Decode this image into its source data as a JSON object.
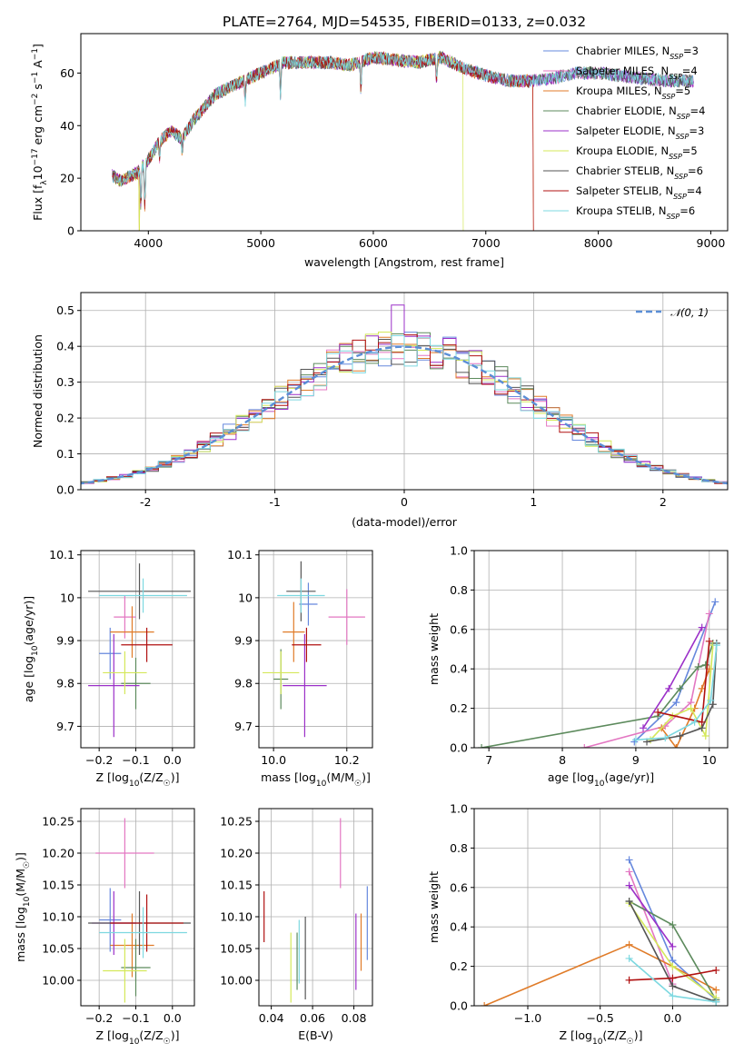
{
  "figure": {
    "title": "PLATE=2764, MJD=54535, FIBERID=0133, z=0.032"
  },
  "colors": [
    "#6688dd",
    "#e377c2",
    "#e07b28",
    "#5c8a5c",
    "#9b30c8",
    "#d4e85a",
    "#555555",
    "#b01010",
    "#7dd8e0"
  ],
  "chart_data": [
    {
      "id": "spectrum",
      "type": "line",
      "xlabel": "wavelength [Angstrom, rest frame]",
      "ylabel": "Flux [f_λ 10^-17 erg cm^-2 s^-1 A^-1]",
      "xlim": [
        3400,
        9150
      ],
      "ylim": [
        0,
        75
      ],
      "xticks": [
        4000,
        5000,
        6000,
        7000,
        8000,
        9000
      ],
      "yticks": [
        0,
        20,
        40,
        60
      ],
      "grid": false,
      "legend_position": "upper-right",
      "continuum": {
        "x": [
          3680,
          3750,
          3900,
          4000,
          4100,
          4200,
          4300,
          4400,
          4500,
          4600,
          4800,
          5000,
          5200,
          5400,
          5600,
          5800,
          6000,
          6200,
          6400,
          6600,
          6800,
          7000,
          7200,
          7400,
          7600,
          7800,
          8000,
          8200,
          8400,
          8600,
          8850
        ],
        "y": [
          21,
          19,
          22,
          27,
          34,
          38,
          35,
          42,
          47,
          52,
          56,
          60,
          64,
          64,
          64,
          63,
          66,
          65,
          64,
          66,
          62,
          59,
          57,
          57,
          58,
          60,
          60,
          59,
          58,
          57,
          57
        ]
      },
      "series": [
        {
          "name": "Chabrier MILES, N_SSP=3",
          "label_main": "Chabrier MILES, N",
          "label_sub": "SSP",
          "label_tail": "=3",
          "cutoff": null
        },
        {
          "name": "Salpeter MILES, N_SSP=4",
          "label_main": "Salpeter MILES, N",
          "label_sub": "SSP",
          "label_tail": "=4",
          "cutoff": null
        },
        {
          "name": "Kroupa MILES, N_SSP=5",
          "label_main": "Kroupa MILES, N",
          "label_sub": "SSP",
          "label_tail": "=5",
          "cutoff": 7420
        },
        {
          "name": "Chabrier ELODIE, N_SSP=4",
          "label_main": "Chabrier ELODIE, N",
          "label_sub": "SSP",
          "label_tail": "=4",
          "cutoff": null
        },
        {
          "name": "Salpeter ELODIE, N_SSP=3",
          "label_main": "Salpeter ELODIE, N",
          "label_sub": "SSP",
          "label_tail": "=3",
          "cutoff": null
        },
        {
          "name": "Kroupa ELODIE, N_SSP=5",
          "label_main": "Kroupa ELODIE, N",
          "label_sub": "SSP",
          "label_tail": "=5",
          "cutoff": 6800
        },
        {
          "name": "Chabrier STELIB, N_SSP=6",
          "label_main": "Chabrier STELIB, N",
          "label_sub": "SSP",
          "label_tail": "=6",
          "cutoff": null
        },
        {
          "name": "Salpeter STELIB, N_SSP=4",
          "label_main": "Salpeter STELIB, N",
          "label_sub": "SSP",
          "label_tail": "=4",
          "cutoff": 7420
        },
        {
          "name": "Kroupa STELIB, N_SSP=6",
          "label_main": "Kroupa STELIB, N",
          "label_sub": "SSP",
          "label_tail": "=6",
          "cutoff": null
        }
      ]
    },
    {
      "id": "residuals",
      "type": "line",
      "xlabel": "(data-model)/error",
      "ylabel": "Normed distribution",
      "xlim": [
        -2.5,
        2.5
      ],
      "ylim": [
        0,
        0.55
      ],
      "xticks": [
        -2,
        -1,
        0,
        1,
        2
      ],
      "yticks": [
        0.0,
        0.1,
        0.2,
        0.3,
        0.4,
        0.5
      ],
      "ytick_labels": [
        "0.0",
        "0.1",
        "0.2",
        "0.3",
        "0.4",
        "0.5"
      ],
      "grid": true,
      "bin_width": 0.1,
      "legend": {
        "label": "𝒩(0, 1)",
        "position": "upper-right"
      }
    },
    {
      "id": "age-vs-Z",
      "type": "scatter",
      "xlabel": "Z [log10(Z/Z☉)]",
      "ylabel": "age [log10(age/yr)]",
      "xlim": [
        -0.25,
        0.06
      ],
      "ylim": [
        9.65,
        10.11
      ],
      "xticks": [
        -0.2,
        -0.1,
        0.0
      ],
      "xtick_labels": [
        "−0.2",
        "−0.1",
        "0.0"
      ],
      "yticks": [
        9.7,
        9.8,
        9.9,
        10.0,
        10.1
      ],
      "grid": true,
      "points": [
        {
          "x": -0.17,
          "xerr": 0.03,
          "y": 9.87,
          "yerr": 0.06
        },
        {
          "x": -0.13,
          "xerr": 0.03,
          "y": 9.955,
          "yerr": 0.05
        },
        {
          "x": -0.11,
          "xerr": 0.06,
          "y": 9.92,
          "yerr": 0.06
        },
        {
          "x": -0.1,
          "xerr": 0.04,
          "y": 9.8,
          "yerr": 0.06
        },
        {
          "x": -0.16,
          "xerr": 0.07,
          "y": 9.795,
          "yerr": 0.12
        },
        {
          "x": -0.13,
          "xerr": 0.06,
          "y": 9.825,
          "yerr": 0.05
        },
        {
          "x": -0.09,
          "xerr": 0.14,
          "y": 10.015,
          "yerr": 0.065
        },
        {
          "x": -0.07,
          "xerr": 0.07,
          "y": 9.89,
          "yerr": 0.04
        },
        {
          "x": -0.08,
          "xerr": 0.12,
          "y": 10.005,
          "yerr": 0.04
        }
      ]
    },
    {
      "id": "age-vs-mass",
      "type": "scatter",
      "xlabel": "mass [log10(M/M☉)]",
      "ylabel": "",
      "xlim": [
        9.96,
        10.27
      ],
      "ylim": [
        9.65,
        10.11
      ],
      "xticks": [
        10.0,
        10.2
      ],
      "xtick_labels": [
        "10.0",
        "10.2"
      ],
      "yticks": [
        9.7,
        9.8,
        9.9,
        10.0,
        10.1
      ],
      "grid": true,
      "points": [
        {
          "x": 10.095,
          "xerr": 0.025,
          "y": 9.985,
          "yerr": 0.05
        },
        {
          "x": 10.2,
          "xerr": 0.05,
          "y": 9.955,
          "yerr": 0.065
        },
        {
          "x": 10.055,
          "xerr": 0.03,
          "y": 9.92,
          "yerr": 0.07
        },
        {
          "x": 10.02,
          "xerr": 0.02,
          "y": 9.81,
          "yerr": 0.07
        },
        {
          "x": 10.085,
          "xerr": 0.06,
          "y": 9.795,
          "yerr": 0.12
        },
        {
          "x": 10.02,
          "xerr": 0.05,
          "y": 9.825,
          "yerr": 0.05
        },
        {
          "x": 10.075,
          "xerr": 0.04,
          "y": 10.015,
          "yerr": 0.07
        },
        {
          "x": 10.09,
          "xerr": 0.04,
          "y": 9.89,
          "yerr": 0.04
        },
        {
          "x": 10.075,
          "xerr": 0.065,
          "y": 10.005,
          "yerr": 0.04
        }
      ]
    },
    {
      "id": "mass-weight-vs-age",
      "type": "line",
      "xlabel": "age [log10(age/yr)]",
      "ylabel": "mass weight",
      "xlim": [
        6.8,
        10.25
      ],
      "ylim": [
        0,
        1
      ],
      "xticks": [
        7,
        8,
        9,
        10
      ],
      "yticks": [
        0.0,
        0.2,
        0.4,
        0.6,
        0.8,
        1.0
      ],
      "ytick_labels": [
        "0.0",
        "0.2",
        "0.4",
        "0.6",
        "0.8",
        "1.0"
      ],
      "grid": true,
      "series": [
        {
          "x": [
            8.98,
            9.55,
            10.08
          ],
          "y": [
            0.03,
            0.23,
            0.74
          ]
        },
        {
          "x": [
            8.3,
            9.4,
            9.75,
            10.0
          ],
          "y": [
            0.0,
            0.11,
            0.23,
            0.68
          ]
        },
        {
          "x": [
            9.35,
            9.55,
            9.8,
            9.9,
            10.0
          ],
          "y": [
            0.1,
            0.0,
            0.2,
            0.3,
            0.4
          ]
        },
        {
          "x": [
            6.9,
            9.3,
            9.6,
            9.85,
            9.95,
            10.05
          ],
          "y": [
            0.0,
            0.16,
            0.3,
            0.41,
            0.42,
            0.53
          ]
        },
        {
          "x": [
            9.1,
            9.45,
            9.9
          ],
          "y": [
            0.1,
            0.3,
            0.61
          ]
        },
        {
          "x": [
            9.2,
            9.5,
            9.75,
            9.95,
            10.05
          ],
          "y": [
            0.04,
            0.16,
            0.2,
            0.06,
            0.52
          ]
        },
        {
          "x": [
            9.15,
            9.6,
            9.9,
            10.05,
            10.1
          ],
          "y": [
            0.03,
            0.06,
            0.1,
            0.22,
            0.53
          ]
        },
        {
          "x": [
            9.3,
            9.9,
            10.0
          ],
          "y": [
            0.18,
            0.13,
            0.54
          ]
        },
        {
          "x": [
            9.0,
            9.4,
            9.8,
            10.02,
            10.1
          ],
          "y": [
            0.04,
            0.05,
            0.13,
            0.24,
            0.52
          ]
        }
      ]
    },
    {
      "id": "mass-vs-Z",
      "type": "scatter",
      "xlabel": "Z [log10(Z/Z☉)]",
      "ylabel": "mass [log10(M/M☉)]",
      "xlim": [
        -0.25,
        0.06
      ],
      "ylim": [
        9.96,
        10.27
      ],
      "xticks": [
        -0.2,
        -0.1,
        0.0
      ],
      "xtick_labels": [
        "−0.2",
        "−0.1",
        "0.0"
      ],
      "yticks": [
        10.0,
        10.05,
        10.1,
        10.15,
        10.2,
        10.25
      ],
      "ytick_labels": [
        "10.00",
        "10.05",
        "10.10",
        "10.15",
        "10.20",
        "10.25"
      ],
      "grid": true,
      "points": [
        {
          "x": -0.17,
          "xerr": 0.03,
          "y": 10.095,
          "yerr": 0.05
        },
        {
          "x": -0.13,
          "xerr": 0.08,
          "y": 10.2,
          "yerr": 0.055
        },
        {
          "x": -0.11,
          "xerr": 0.06,
          "y": 10.055,
          "yerr": 0.05
        },
        {
          "x": -0.1,
          "xerr": 0.04,
          "y": 10.02,
          "yerr": 0.045
        },
        {
          "x": -0.16,
          "xerr": 0.06,
          "y": 10.09,
          "yerr": 0.05
        },
        {
          "x": -0.13,
          "xerr": 0.06,
          "y": 10.015,
          "yerr": 0.05
        },
        {
          "x": -0.09,
          "xerr": 0.14,
          "y": 10.09,
          "yerr": 0.05
        },
        {
          "x": -0.07,
          "xerr": 0.1,
          "y": 10.09,
          "yerr": 0.045
        },
        {
          "x": -0.08,
          "xerr": 0.12,
          "y": 10.075,
          "yerr": 0.04
        }
      ]
    },
    {
      "id": "mass-vs-EBV",
      "type": "scatter",
      "xlabel": "E(B-V)",
      "ylabel": "",
      "xlim": [
        0.034,
        0.089
      ],
      "ylim": [
        9.96,
        10.27
      ],
      "xticks": [
        0.04,
        0.06,
        0.08
      ],
      "xtick_labels": [
        "0.04",
        "0.06",
        "0.08"
      ],
      "yticks": [
        10.0,
        10.05,
        10.1,
        10.15,
        10.2,
        10.25
      ],
      "ytick_labels": [
        "10.00",
        "10.05",
        "10.10",
        "10.15",
        "10.20",
        "10.25"
      ],
      "grid": true,
      "points": [
        {
          "x": 0.0865,
          "xerr": 0,
          "y": 10.09,
          "yerr": 0.058
        },
        {
          "x": 0.0735,
          "xerr": 0,
          "y": 10.2,
          "yerr": 0.055
        },
        {
          "x": 0.0835,
          "xerr": 0,
          "y": 10.06,
          "yerr": 0.045
        },
        {
          "x": 0.0525,
          "xerr": 0,
          "y": 10.03,
          "yerr": 0.045
        },
        {
          "x": 0.081,
          "xerr": 0,
          "y": 10.045,
          "yerr": 0.06
        },
        {
          "x": 0.0495,
          "xerr": 0,
          "y": 10.02,
          "yerr": 0.055
        },
        {
          "x": 0.0565,
          "xerr": 0,
          "y": 10.035,
          "yerr": 0.065
        },
        {
          "x": 0.0365,
          "xerr": 0,
          "y": 10.1,
          "yerr": 0.04
        },
        {
          "x": 0.0535,
          "xerr": 0,
          "y": 10.045,
          "yerr": 0.05
        }
      ]
    },
    {
      "id": "mass-weight-vs-Z",
      "type": "line",
      "xlabel": "Z [log10(Z/Z☉)]",
      "ylabel": "mass weight",
      "xlim": [
        -1.37,
        0.38
      ],
      "ylim": [
        0,
        1
      ],
      "xticks": [
        -1.0,
        -0.5,
        0.0
      ],
      "xtick_labels": [
        "−1.0",
        "−0.5",
        "0.0"
      ],
      "yticks": [
        0.0,
        0.2,
        0.4,
        0.6,
        0.8,
        1.0
      ],
      "ytick_labels": [
        "0.0",
        "0.2",
        "0.4",
        "0.6",
        "0.8",
        "1.0"
      ],
      "grid": true,
      "series": [
        {
          "x": [
            -0.3,
            0.0,
            0.3
          ],
          "y": [
            0.74,
            0.23,
            0.03
          ]
        },
        {
          "x": [
            -0.3,
            0.0
          ],
          "y": [
            0.68,
            0.11
          ]
        },
        {
          "x": [
            -1.3,
            -0.3,
            0.0,
            0.3
          ],
          "y": [
            0.0,
            0.31,
            0.2,
            0.08
          ]
        },
        {
          "x": [
            -0.3,
            0.0,
            0.3
          ],
          "y": [
            0.53,
            0.41,
            0.03
          ]
        },
        {
          "x": [
            -0.3,
            0.0
          ],
          "y": [
            0.61,
            0.3
          ]
        },
        {
          "x": [
            -0.3,
            0.0,
            0.3
          ],
          "y": [
            0.52,
            0.2,
            0.04
          ]
        },
        {
          "x": [
            -0.3,
            0.0,
            0.3
          ],
          "y": [
            0.53,
            0.1,
            0.02
          ]
        },
        {
          "x": [
            -0.3,
            0.0,
            0.3
          ],
          "y": [
            0.13,
            0.14,
            0.18
          ]
        },
        {
          "x": [
            -0.3,
            0.0,
            0.3
          ],
          "y": [
            0.24,
            0.05,
            0.02
          ]
        }
      ]
    }
  ]
}
